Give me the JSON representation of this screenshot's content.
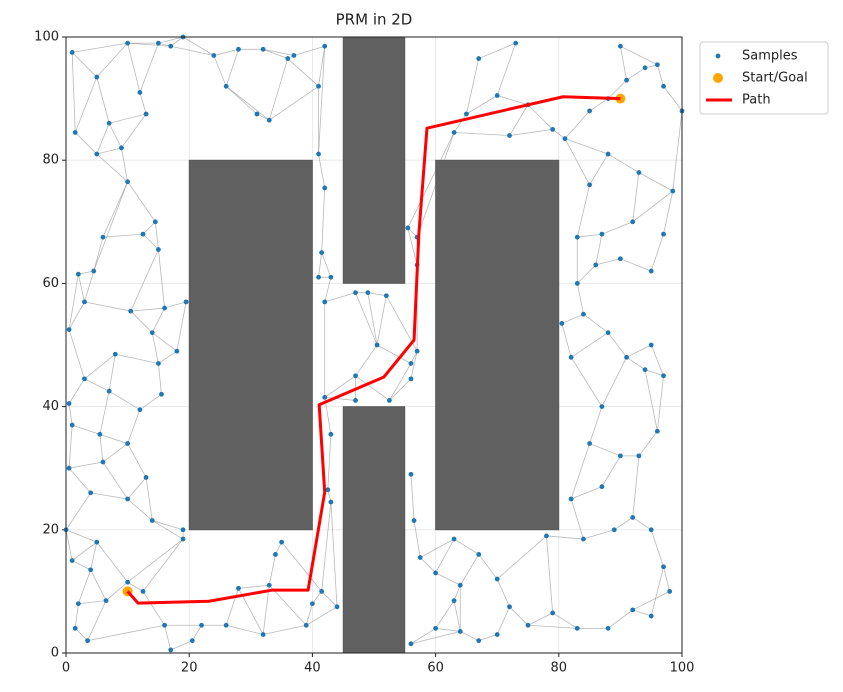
{
  "chart_data": {
    "type": "scatter",
    "title": "PRM in 2D",
    "xlim": [
      0,
      100
    ],
    "ylim": [
      0,
      100
    ],
    "xticks": [
      0,
      20,
      40,
      60,
      80,
      100
    ],
    "yticks": [
      0,
      20,
      40,
      60,
      80,
      100
    ],
    "grid": true,
    "legend": "outside upper right",
    "obstacles": [
      {
        "x": [
          20,
          40
        ],
        "y": [
          20,
          80
        ]
      },
      {
        "x": [
          45,
          55
        ],
        "y": [
          60,
          100
        ]
      },
      {
        "x": [
          45,
          55
        ],
        "y": [
          0,
          40
        ]
      },
      {
        "x": [
          60,
          80
        ],
        "y": [
          20,
          80
        ]
      }
    ],
    "obstacle_color": "#606060",
    "edge_color": "#808080",
    "series": [
      {
        "name": "Samples",
        "color": "#1f77b4",
        "x": [
          1,
          5,
          10,
          15,
          19,
          24,
          28,
          32,
          37,
          42,
          26,
          31,
          33,
          41,
          13,
          7,
          1.5,
          5,
          9,
          12,
          17,
          36,
          10,
          6,
          14.5,
          12.5,
          15,
          2,
          4.5,
          3,
          10.5,
          16,
          19.5,
          0.5,
          14,
          18,
          8,
          15,
          3,
          15.5,
          7,
          0.5,
          12,
          1,
          5.5,
          10,
          0.5,
          6,
          13,
          4,
          10,
          0,
          14,
          19,
          19,
          5,
          1,
          4,
          2,
          10,
          6.5,
          1.5,
          3.5,
          16,
          17,
          20.5,
          22,
          26,
          32,
          28,
          33,
          34,
          35,
          39,
          40,
          41.5,
          44,
          12.5,
          41,
          42,
          41.5,
          41,
          43,
          42,
          42,
          43,
          43,
          42.5,
          47,
          49,
          52,
          50.5,
          47,
          52.5,
          47,
          56,
          57,
          55.5,
          57,
          57,
          56,
          56.5,
          56,
          57.5,
          63,
          60,
          64,
          63,
          60,
          64,
          67,
          70,
          72,
          75,
          79,
          83,
          88,
          92,
          95,
          78,
          56,
          67,
          70,
          82,
          84,
          87,
          90,
          93,
          89,
          92,
          96,
          97,
          95,
          88,
          84,
          83,
          86,
          90,
          95,
          97,
          83,
          87,
          92,
          85,
          88,
          93,
          98.5,
          82,
          91,
          94,
          80.5,
          87,
          97,
          98,
          95,
          85,
          63,
          65,
          67,
          73,
          70,
          75,
          72,
          79,
          81,
          90,
          91,
          94,
          97,
          100,
          85,
          88,
          96
        ],
        "y": [
          97.5,
          93.5,
          99,
          99,
          100,
          97,
          98,
          98,
          97,
          98.5,
          92,
          87.5,
          86.5,
          92,
          87.5,
          86,
          84.5,
          81,
          82,
          91,
          98.5,
          96.5,
          76.5,
          67.5,
          70,
          68,
          65.5,
          61.5,
          62,
          57,
          55.5,
          56,
          57,
          52.5,
          52,
          49,
          48.5,
          47,
          44.5,
          42,
          42.5,
          40.5,
          39.5,
          37,
          35.5,
          34,
          30,
          31,
          28.5,
          26,
          25,
          20,
          21.5,
          20,
          18.5,
          18,
          15,
          13.5,
          8,
          11.5,
          8.5,
          4,
          2,
          4.5,
          0.5,
          2,
          4.5,
          4.5,
          3,
          10.5,
          11,
          16,
          18,
          4.5,
          8,
          10,
          7.5,
          10,
          81,
          75.5,
          65,
          61,
          61,
          57,
          41.5,
          35.5,
          24.5,
          26.5,
          58.5,
          58.5,
          58,
          50,
          45,
          41,
          41,
          44.5,
          49,
          69,
          67.5,
          63,
          47,
          21.5,
          29,
          15.5,
          18.5,
          13,
          11,
          8.5,
          4,
          3.5,
          2,
          3,
          7.5,
          4.5,
          6.5,
          4,
          4,
          7,
          6,
          19,
          1.5,
          16,
          12,
          25,
          18.5,
          27,
          32,
          32,
          20,
          22,
          36,
          45,
          50,
          52,
          55,
          60,
          63,
          64,
          62,
          68,
          67.5,
          68,
          70,
          76,
          81,
          78,
          75,
          48,
          48,
          46,
          53.5,
          40,
          14,
          10,
          20,
          34,
          84.5,
          87.5,
          96.5,
          99,
          90.5,
          89,
          84,
          85,
          83.5,
          98.5,
          93,
          95,
          92,
          88,
          88,
          90,
          95.5
        ]
      },
      {
        "name": "Start/Goal",
        "color": "#ffa500",
        "x": [
          10,
          90
        ],
        "y": [
          10,
          90
        ]
      },
      {
        "name": "Path",
        "color": "#ff0000",
        "x": [
          10,
          11.7,
          23.2,
          33.4,
          39.3,
          42,
          41.1,
          51.6,
          56.5,
          57.3,
          58.6,
          80.7,
          90
        ],
        "y": [
          10,
          8.1,
          8.4,
          10.2,
          10.2,
          26.1,
          40.3,
          44.8,
          50.8,
          68.3,
          85.2,
          90.3,
          90
        ]
      }
    ],
    "edges": [
      [
        0,
        1
      ],
      [
        0,
        2
      ],
      [
        1,
        2
      ],
      [
        1,
        15
      ],
      [
        1,
        16
      ],
      [
        2,
        3
      ],
      [
        2,
        19
      ],
      [
        2,
        20
      ],
      [
        3,
        20
      ],
      [
        3,
        4
      ],
      [
        4,
        5
      ],
      [
        4,
        20
      ],
      [
        5,
        6
      ],
      [
        5,
        10
      ],
      [
        6,
        7
      ],
      [
        6,
        10
      ],
      [
        7,
        8
      ],
      [
        7,
        21
      ],
      [
        8,
        21
      ],
      [
        8,
        9
      ],
      [
        9,
        13
      ],
      [
        13,
        21
      ],
      [
        10,
        11
      ],
      [
        11,
        12
      ],
      [
        12,
        21
      ],
      [
        10,
        12
      ],
      [
        14,
        19
      ],
      [
        14,
        15
      ],
      [
        15,
        18
      ],
      [
        15,
        17
      ],
      [
        16,
        17
      ],
      [
        17,
        18
      ],
      [
        18,
        22
      ],
      [
        19,
        3
      ],
      [
        14,
        18
      ],
      [
        13,
        78
      ],
      [
        9,
        78
      ],
      [
        12,
        13
      ],
      [
        0,
        16
      ],
      [
        5,
        20
      ],
      [
        22,
        23
      ],
      [
        22,
        24
      ],
      [
        23,
        25
      ],
      [
        24,
        25
      ],
      [
        25,
        26
      ],
      [
        24,
        26
      ],
      [
        23,
        28
      ],
      [
        27,
        28
      ],
      [
        27,
        29
      ],
      [
        28,
        29
      ],
      [
        26,
        30
      ],
      [
        29,
        30
      ],
      [
        30,
        31
      ],
      [
        31,
        32
      ],
      [
        26,
        31
      ],
      [
        29,
        33
      ],
      [
        33,
        38
      ],
      [
        30,
        34
      ],
      [
        34,
        35
      ],
      [
        31,
        34
      ],
      [
        32,
        35
      ],
      [
        34,
        37
      ],
      [
        36,
        37
      ],
      [
        35,
        37
      ],
      [
        36,
        40
      ],
      [
        36,
        38
      ],
      [
        38,
        41
      ],
      [
        38,
        40
      ],
      [
        37,
        39
      ],
      [
        39,
        42
      ],
      [
        40,
        42
      ],
      [
        41,
        43
      ],
      [
        40,
        44
      ],
      [
        43,
        44
      ],
      [
        42,
        45
      ],
      [
        44,
        45
      ],
      [
        43,
        46
      ],
      [
        44,
        47
      ],
      [
        45,
        47
      ],
      [
        45,
        48
      ],
      [
        46,
        47
      ],
      [
        46,
        49
      ],
      [
        47,
        50
      ],
      [
        48,
        50
      ],
      [
        49,
        50
      ],
      [
        48,
        52
      ],
      [
        50,
        52
      ],
      [
        49,
        51
      ],
      [
        51,
        55
      ],
      [
        52,
        53
      ],
      [
        52,
        54
      ],
      [
        53,
        54
      ],
      [
        27,
        33
      ],
      [
        17,
        22
      ],
      [
        22,
        28
      ],
      [
        51,
        56
      ],
      [
        55,
        56
      ],
      [
        55,
        57
      ],
      [
        56,
        57
      ],
      [
        57,
        58
      ],
      [
        57,
        60
      ],
      [
        58,
        61
      ],
      [
        61,
        62
      ],
      [
        58,
        60
      ],
      [
        59,
        60
      ],
      [
        59,
        77
      ],
      [
        55,
        59
      ],
      [
        60,
        62
      ],
      [
        62,
        63
      ],
      [
        63,
        64
      ],
      [
        63,
        77
      ],
      [
        64,
        65
      ],
      [
        65,
        66
      ],
      [
        66,
        67
      ],
      [
        67,
        68
      ],
      [
        67,
        69
      ],
      [
        68,
        69
      ],
      [
        69,
        70
      ],
      [
        68,
        70
      ],
      [
        70,
        71
      ],
      [
        71,
        72
      ],
      [
        70,
        73
      ],
      [
        73,
        74
      ],
      [
        74,
        75
      ],
      [
        75,
        76
      ],
      [
        73,
        76
      ],
      [
        72,
        75
      ],
      [
        54,
        77
      ],
      [
        54,
        59
      ],
      [
        68,
        73
      ],
      [
        63,
        66
      ],
      [
        75,
        86
      ],
      [
        76,
        86
      ],
      [
        86,
        87
      ],
      [
        85,
        87
      ],
      [
        84,
        85
      ],
      [
        84,
        94
      ],
      [
        84,
        92
      ],
      [
        94,
        92
      ],
      [
        92,
        93
      ],
      [
        93,
        95
      ],
      [
        91,
        92
      ],
      [
        91,
        100
      ],
      [
        93,
        100
      ],
      [
        95,
        96
      ],
      [
        96,
        100
      ],
      [
        88,
        89
      ],
      [
        89,
        90
      ],
      [
        88,
        91
      ],
      [
        90,
        91
      ],
      [
        89,
        91
      ],
      [
        83,
        88
      ],
      [
        82,
        83
      ],
      [
        81,
        82
      ],
      [
        80,
        81
      ],
      [
        79,
        80
      ],
      [
        78,
        79
      ],
      [
        90,
        96
      ],
      [
        96,
        99
      ],
      [
        97,
        98
      ],
      [
        98,
        99
      ],
      [
        97,
        99
      ],
      [
        83,
        84
      ],
      [
        80,
        82
      ],
      [
        101,
        102
      ],
      [
        101,
        103
      ],
      [
        103,
        104
      ],
      [
        103,
        105
      ],
      [
        104,
        105
      ],
      [
        105,
        106
      ],
      [
        106,
        107
      ],
      [
        107,
        108
      ],
      [
        108,
        109
      ],
      [
        109,
        110
      ],
      [
        110,
        111
      ],
      [
        111,
        112
      ],
      [
        112,
        113
      ],
      [
        113,
        114
      ],
      [
        114,
        115
      ],
      [
        115,
        116
      ],
      [
        116,
        117
      ],
      [
        117,
        118
      ],
      [
        118,
        152
      ],
      [
        152,
        153
      ],
      [
        117,
        153
      ],
      [
        104,
        121
      ],
      [
        121,
        122
      ],
      [
        106,
        121
      ],
      [
        112,
        122
      ],
      [
        119,
        122
      ],
      [
        119,
        124
      ],
      [
        114,
        119
      ],
      [
        108,
        120
      ],
      [
        120,
        109
      ],
      [
        106,
        109
      ],
      [
        113,
        115
      ],
      [
        107,
        109
      ],
      [
        124,
        128
      ],
      [
        123,
        124
      ],
      [
        123,
        125
      ],
      [
        125,
        126
      ],
      [
        126,
        127
      ],
      [
        127,
        129
      ],
      [
        128,
        129
      ],
      [
        129,
        154
      ],
      [
        154,
        152
      ],
      [
        127,
        130
      ],
      [
        130,
        131
      ],
      [
        131,
        132
      ],
      [
        131,
        149
      ],
      [
        148,
        149
      ],
      [
        132,
        148
      ],
      [
        133,
        148
      ],
      [
        133,
        134
      ],
      [
        134,
        150
      ],
      [
        147,
        150
      ],
      [
        147,
        151
      ],
      [
        151,
        155
      ],
      [
        155,
        123
      ],
      [
        126,
        155
      ],
      [
        134,
        135
      ],
      [
        135,
        136
      ],
      [
        136,
        137
      ],
      [
        137,
        138
      ],
      [
        138,
        139
      ],
      [
        136,
        141
      ],
      [
        140,
        141
      ],
      [
        141,
        142
      ],
      [
        142,
        146
      ],
      [
        139,
        146
      ],
      [
        140,
        143
      ],
      [
        143,
        144
      ],
      [
        144,
        145
      ],
      [
        145,
        146
      ],
      [
        142,
        145
      ],
      [
        135,
        140
      ],
      [
        133,
        147
      ],
      [
        148,
        151
      ],
      [
        130,
        149
      ],
      [
        156,
        157
      ],
      [
        157,
        158
      ],
      [
        158,
        159
      ],
      [
        157,
        160
      ],
      [
        160,
        161
      ],
      [
        161,
        162
      ],
      [
        162,
        163
      ],
      [
        161,
        163
      ],
      [
        163,
        164
      ],
      [
        164,
        170
      ],
      [
        170,
        171
      ],
      [
        171,
        166
      ],
      [
        165,
        166
      ],
      [
        166,
        167
      ],
      [
        167,
        172
      ],
      [
        172,
        168
      ],
      [
        168,
        169
      ],
      [
        165,
        172
      ],
      [
        159,
        160
      ],
      [
        156,
        162
      ],
      [
        144,
        164
      ],
      [
        164,
        143
      ],
      [
        169,
        146
      ],
      [
        98,
        156
      ],
      [
        97,
        156
      ]
    ]
  }
}
